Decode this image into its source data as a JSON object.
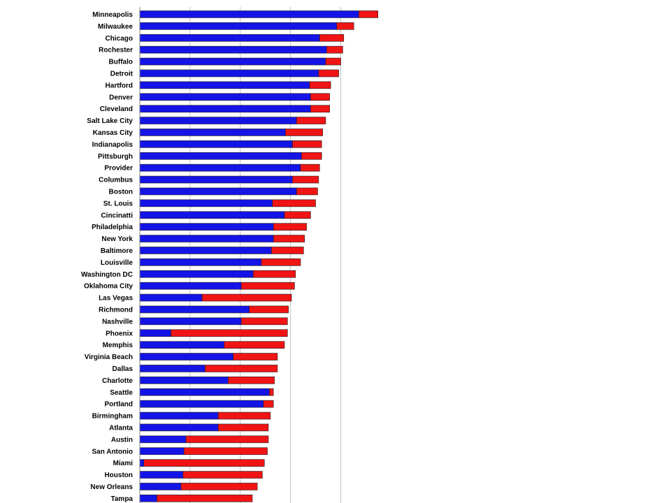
{
  "chart_data": {
    "type": "bar",
    "orientation": "horizontal",
    "stacked": true,
    "title": "",
    "xlabel": "",
    "ylabel": "",
    "grid": true,
    "xlim": [
      0,
      240
    ],
    "categories": [
      "Minneapolis",
      "Milwaukee",
      "Chicago",
      "Rochester",
      "Buffalo",
      "Detroit",
      "Hartford",
      "Denver",
      "Cleveland",
      "Salt Lake City",
      "Kansas City",
      "Indianapolis",
      "Pittsburgh",
      "Provider",
      "Columbus",
      "Boston",
      "St. Louis",
      "Cincinatti",
      "Philadelphia",
      "New York",
      "Baltimore",
      "Louisville",
      "Washington DC",
      "Oklahoma City",
      "Las Vegas",
      "Richmond",
      "Nashville",
      "Phoenix",
      "Memphis",
      "Virginia Beach",
      "Dallas",
      "Charlotte",
      "Seattle",
      "Portland",
      "Birmingham",
      "Atlanta",
      "Austin",
      "San Antonio",
      "Miami",
      "Houston",
      "New Orleans",
      "Tampa"
    ],
    "series": [
      {
        "color": "#1414e6",
        "values": [
          218,
          196,
          179,
          186,
          185,
          178,
          169,
          170,
          170,
          156,
          145,
          152,
          161,
          160,
          152,
          156,
          132,
          144,
          133,
          133,
          131,
          121,
          113,
          101,
          62,
          109,
          101,
          31,
          84,
          93,
          65,
          88,
          129,
          123,
          78,
          78,
          46,
          44,
          4,
          43,
          41,
          17
        ]
      },
      {
        "color": "#f01414",
        "values": [
          19,
          17,
          24,
          16,
          15,
          20,
          21,
          19,
          19,
          29,
          37,
          29,
          20,
          19,
          26,
          21,
          43,
          26,
          33,
          31,
          32,
          39,
          42,
          53,
          89,
          39,
          46,
          116,
          60,
          44,
          72,
          46,
          4,
          10,
          52,
          50,
          82,
          83,
          120,
          79,
          76,
          95
        ]
      }
    ]
  },
  "colors": {
    "blue": "#1414e6",
    "red": "#f01414",
    "grid": "#c0c0c0",
    "axis": "#808080"
  }
}
